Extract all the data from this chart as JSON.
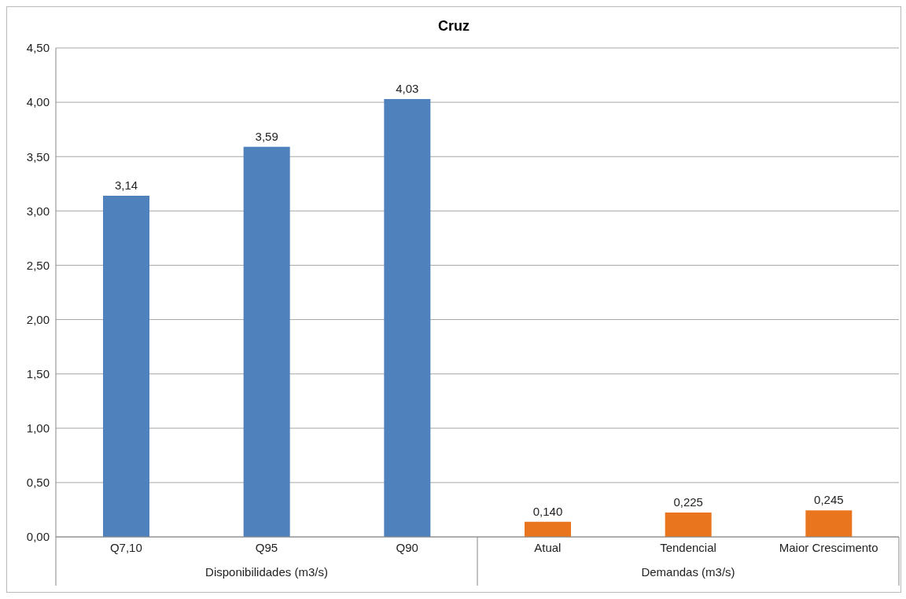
{
  "chart_data": {
    "type": "bar",
    "title": "Cruz",
    "categories": [
      "Q7,10",
      "Q95",
      "Q90",
      "Atual",
      "Tendencial",
      "Maior Crescimento"
    ],
    "values": [
      3.14,
      3.59,
      4.03,
      0.14,
      0.225,
      0.245
    ],
    "colors": [
      "#4f81bd",
      "#4f81bd",
      "#4f81bd",
      "#e9761f",
      "#e9761f",
      "#e9761f"
    ],
    "value_labels": [
      "3,14",
      "3,59",
      "4,03",
      "0,140",
      "0,225",
      "0,245"
    ],
    "ylim": [
      0,
      4.5
    ],
    "yticks": [
      {
        "value": 0,
        "label": "0,00"
      },
      {
        "value": 0.5,
        "label": "0,50"
      },
      {
        "value": 1,
        "label": "1,00"
      },
      {
        "value": 1.5,
        "label": "1,50"
      },
      {
        "value": 2,
        "label": "2,00"
      },
      {
        "value": 2.5,
        "label": "2,50"
      },
      {
        "value": 3,
        "label": "3,00"
      },
      {
        "value": 3.5,
        "label": "3,50"
      },
      {
        "value": 4,
        "label": "4,00"
      },
      {
        "value": 4.5,
        "label": "4,50"
      }
    ],
    "grid": "y",
    "legend": false,
    "annotations": [
      "Disponibilidades (m3/s)",
      "Demandas (m3/s)"
    ]
  }
}
